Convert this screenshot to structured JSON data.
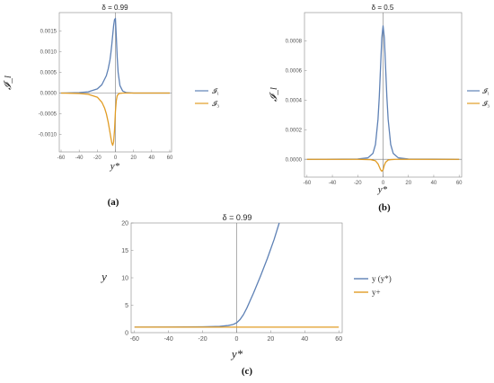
{
  "chart_data": [
    {
      "id": "a",
      "type": "line",
      "title": "δ = 0.99",
      "xlabel": "y*",
      "ylabel": "𝓘_l",
      "panel_label": "(a)",
      "xlim": [
        -62,
        62
      ],
      "ylim": [
        -0.00142,
        0.00194
      ],
      "xticks": [
        -60,
        -40,
        -20,
        0,
        20,
        40,
        60
      ],
      "yticks": [
        -0.001,
        -0.0005,
        0.0,
        0.0005,
        0.001,
        0.0015
      ],
      "ytick_labels": [
        "-0.0010",
        "-0.0005",
        "0.0000",
        "0.0005",
        "0.0010",
        "0.0015"
      ],
      "legend_position": "right",
      "series": [
        {
          "name": "𝓘₁",
          "color": "#5E81B5",
          "x": [
            -60,
            -40,
            -30,
            -20,
            -15,
            -10,
            -8,
            -6,
            -5,
            -4,
            -3,
            -2,
            -1,
            0,
            1,
            2,
            3,
            5,
            8,
            12,
            20,
            40,
            60
          ],
          "y": [
            0.0,
            1e-05,
            3e-05,
            0.0001,
            0.0002,
            0.00042,
            0.00058,
            0.0008,
            0.00097,
            0.00117,
            0.0014,
            0.00162,
            0.00177,
            0.0018,
            0.00135,
            0.00085,
            0.0005,
            0.00018,
            5e-05,
            1e-05,
            0.0,
            0.0,
            0.0
          ]
        },
        {
          "name": "𝓘₃",
          "color": "#E19C24",
          "x": [
            -60,
            -40,
            -30,
            -20,
            -15,
            -12,
            -10,
            -8,
            -6,
            -5,
            -4,
            -3,
            -2,
            -1,
            0,
            1,
            2,
            4,
            8,
            12,
            20,
            40,
            60
          ],
          "y": [
            0.0,
            -1e-05,
            -3e-05,
            -0.0001,
            -0.00022,
            -0.00036,
            -0.0005,
            -0.0007,
            -0.00095,
            -0.00108,
            -0.0012,
            -0.00126,
            -0.00118,
            -0.0009,
            -0.00045,
            -0.00018,
            -6e-05,
            -1e-05,
            0.0,
            0.0,
            0.0,
            0.0,
            0.0
          ]
        }
      ]
    },
    {
      "id": "b",
      "type": "line",
      "title": "δ = 0.5",
      "xlabel": "y*",
      "ylabel": "𝓘_l",
      "panel_label": "(b)",
      "xlim": [
        -62,
        62
      ],
      "ylim": [
        -0.00012,
        0.00099
      ],
      "xticks": [
        -60,
        -40,
        -20,
        0,
        20,
        40,
        60
      ],
      "yticks": [
        0.0,
        0.0002,
        0.0004,
        0.0006,
        0.0008
      ],
      "ytick_labels": [
        "0.0000",
        "0.0002",
        "0.0004",
        "0.0006",
        "0.0008"
      ],
      "legend_position": "right",
      "series": [
        {
          "name": "𝓘₁",
          "color": "#5E81B5",
          "x": [
            -60,
            -20,
            -12,
            -8,
            -6,
            -4,
            -3,
            -2,
            -1,
            0,
            1,
            2,
            3,
            4,
            6,
            8,
            12,
            20,
            60
          ],
          "y": [
            0.0,
            2e-06,
            1e-05,
            4e-05,
            0.0001,
            0.00027,
            0.00042,
            0.00062,
            0.00082,
            0.0009,
            0.00082,
            0.00062,
            0.00042,
            0.00027,
            0.0001,
            4e-05,
            1e-05,
            2e-06,
            0.0
          ]
        },
        {
          "name": "𝓘₃",
          "color": "#E19C24",
          "x": [
            -60,
            -20,
            -10,
            -6,
            -4,
            -2,
            -1,
            0,
            1,
            2,
            4,
            6,
            10,
            20,
            60
          ],
          "y": [
            0.0,
            0.0,
            -2e-06,
            -1e-05,
            -3e-05,
            -7e-05,
            -8e-05,
            -7e-05,
            -4e-05,
            -2e-05,
            -5e-06,
            -2e-06,
            0.0,
            0.0,
            0.0
          ]
        }
      ]
    },
    {
      "id": "c",
      "type": "line",
      "title": "δ = 0.99",
      "xlabel": "y*",
      "ylabel": "y",
      "panel_label": "(c)",
      "xlim": [
        -62,
        62
      ],
      "ylim": [
        0,
        20
      ],
      "xticks": [
        -60,
        -40,
        -20,
        0,
        20,
        40,
        60
      ],
      "yticks": [
        0,
        5,
        10,
        15,
        20
      ],
      "ytick_labels": [
        "0",
        "5",
        "10",
        "15",
        "20"
      ],
      "legend_position": "right",
      "series": [
        {
          "name": "y (y*)",
          "color": "#5E81B5",
          "x": [
            -60,
            -40,
            -20,
            -10,
            -5,
            -2,
            0,
            2,
            4,
            6,
            8,
            10,
            14,
            18,
            22,
            25
          ],
          "y": [
            1.0,
            1.02,
            1.06,
            1.15,
            1.3,
            1.5,
            1.8,
            2.4,
            3.3,
            4.5,
            5.9,
            7.3,
            10.3,
            13.5,
            17.0,
            20.0
          ]
        },
        {
          "name": "y+",
          "color": "#E19C24",
          "x": [
            -60,
            60
          ],
          "y": [
            1.0,
            1.0
          ]
        }
      ]
    }
  ]
}
